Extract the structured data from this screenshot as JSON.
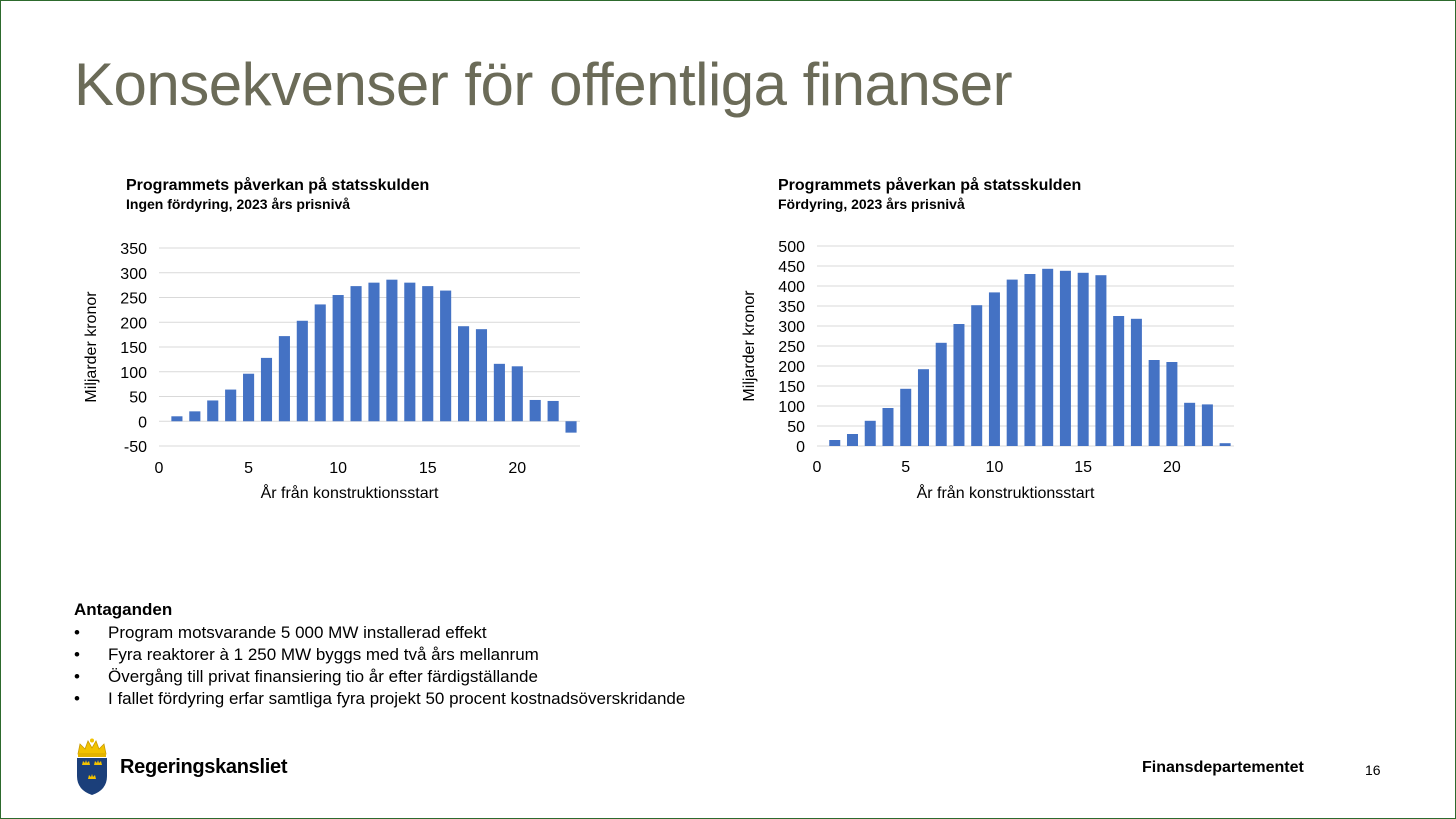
{
  "slide": {
    "title": "Konsekvenser för offentliga finanser",
    "page_number": "16",
    "department": "Finansdepartementet",
    "logo_text": "Regeringskansliet"
  },
  "colors": {
    "title": "#6b6b58",
    "bar": "#4472c4",
    "grid": "#d9d9d9"
  },
  "assumptions": {
    "heading": "Antaganden",
    "items": [
      "Program motsvarande 5 000 MW installerad effekt",
      "Fyra reaktorer à 1 250 MW byggs med två års mellanrum",
      "Övergång till privat finansiering tio år efter färdigställande",
      "I fallet fördyring erfar samtliga fyra projekt 50 procent kostnadsöverskridande"
    ]
  },
  "chart_data": [
    {
      "type": "bar",
      "title": "Programmets påverkan på statsskulden",
      "subtitle": "Ingen fördyring, 2023 års prisnivå",
      "xlabel": "År från konstruktionsstart",
      "ylabel": "Miljarder kronor",
      "x": [
        1,
        2,
        3,
        4,
        5,
        6,
        7,
        8,
        9,
        10,
        11,
        12,
        13,
        14,
        15,
        16,
        17,
        18,
        19,
        20,
        21,
        22,
        23
      ],
      "values": [
        10,
        20,
        42,
        64,
        96,
        128,
        172,
        203,
        236,
        255,
        273,
        280,
        286,
        280,
        273,
        264,
        192,
        186,
        116,
        111,
        43,
        41,
        -23
      ],
      "xlim": [
        0,
        23.5
      ],
      "ylim": [
        -50,
        350
      ],
      "xticks": [
        0,
        5,
        10,
        15,
        20
      ],
      "yticks": [
        -50,
        0,
        50,
        100,
        150,
        200,
        250,
        300,
        350
      ],
      "grid": true
    },
    {
      "type": "bar",
      "title": "Programmets påverkan på statsskulden",
      "subtitle": "Fördyring, 2023 års prisnivå",
      "xlabel": "År från konstruktionsstart",
      "ylabel": "Miljarder kronor",
      "x": [
        1,
        2,
        3,
        4,
        5,
        6,
        7,
        8,
        9,
        10,
        11,
        12,
        13,
        14,
        15,
        16,
        17,
        18,
        19,
        20,
        21,
        22,
        23
      ],
      "values": [
        15,
        30,
        63,
        95,
        143,
        192,
        258,
        305,
        352,
        384,
        416,
        430,
        443,
        438,
        433,
        427,
        325,
        318,
        215,
        210,
        108,
        104,
        7
      ],
      "xlim": [
        0,
        23.5
      ],
      "ylim": [
        0,
        500
      ],
      "xticks": [
        0,
        5,
        10,
        15,
        20
      ],
      "yticks": [
        0,
        50,
        100,
        150,
        200,
        250,
        300,
        350,
        400,
        450,
        500
      ],
      "grid": true
    }
  ]
}
